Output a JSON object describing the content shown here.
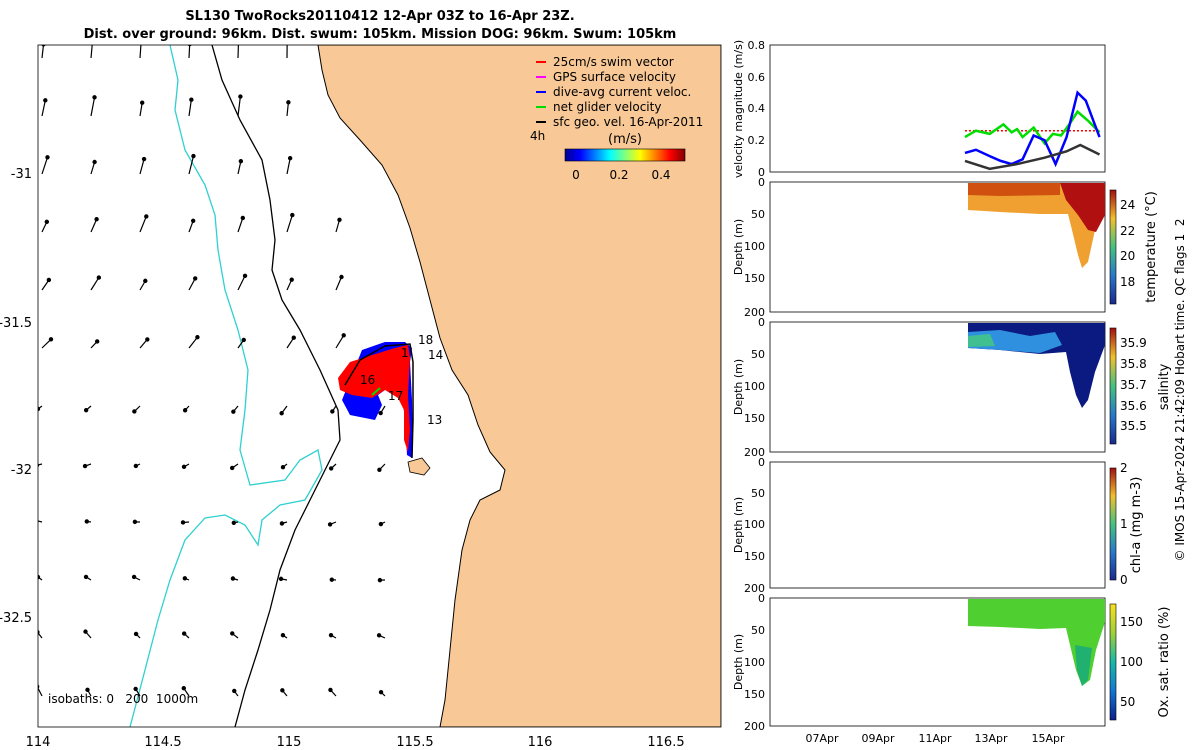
{
  "header": {
    "title_line1": "SL130 TwoRocks20110412 12-Apr 03Z to 16-Apr 23Z.",
    "title_line2": "Dist. over ground: 96km. Dist. swum: 105km. Mission DOG: 96km. Swum: 105km"
  },
  "colors": {
    "ocean_bg": "#ffffff",
    "land": "#f8c896",
    "isobath_shallow": "#30d0d0",
    "isobath_deep": "#000000",
    "swim_vector": "#ff0000",
    "gps_surface": "#ff00ff",
    "dive_avg": "#0000ff",
    "net_glider": "#00dd00",
    "sfc_geo": "#000000"
  },
  "map": {
    "legend": [
      {
        "label": "25cm/s swim vector",
        "color": "#ff0000"
      },
      {
        "label": "GPS surface velocity",
        "color": "#ff00ff"
      },
      {
        "label": "dive-avg current veloc.",
        "color": "#0000ff"
      },
      {
        "label": "net glider velocity",
        "color": "#00dd00"
      },
      {
        "label": "sfc geo. vel. 16-Apr-2011",
        "color": "#000000"
      }
    ],
    "interval_label": "4h",
    "colorbar_title": "(m/s)",
    "colorbar_ticks": [
      "0",
      "0.2",
      "0.4"
    ],
    "isobath_label": "isobaths: 0   200  1000m",
    "x_ticks": [
      "114",
      "114.5",
      "115",
      "115.5",
      "116",
      "116.5"
    ],
    "y_ticks": [
      "-31",
      "-31.5",
      "-32",
      "-32.5"
    ],
    "day_labels": [
      "18",
      "14",
      "16",
      "17",
      "13",
      "1"
    ]
  },
  "chart_data": [
    {
      "type": "line",
      "ylabel": "velocity magnitude (m/s)",
      "ylim": [
        0,
        0.8
      ],
      "y_ticks": [
        "0",
        "0.2",
        "0.4",
        "0.6",
        "0.8"
      ],
      "x_ticks": [
        "07Apr",
        "09Apr",
        "11Apr",
        "13Apr",
        "15Apr"
      ],
      "series": [
        {
          "color": "#ff0000",
          "x": [
            12.1,
            17.0
          ],
          "y": [
            0.26,
            0.26
          ]
        },
        {
          "color": "#00dd00",
          "x": [
            12.1,
            12.5,
            13.0,
            13.5,
            13.8,
            14.0,
            14.2,
            14.6,
            15.0,
            15.3,
            15.6,
            15.9,
            16.2,
            16.6,
            17.0
          ],
          "y": [
            0.22,
            0.26,
            0.24,
            0.3,
            0.25,
            0.27,
            0.22,
            0.28,
            0.18,
            0.24,
            0.23,
            0.3,
            0.38,
            0.32,
            0.25
          ]
        },
        {
          "color": "#0000ff",
          "x": [
            12.1,
            12.5,
            13.0,
            13.4,
            13.8,
            14.2,
            14.6,
            15.0,
            15.4,
            15.8,
            16.2,
            16.5,
            17.0
          ],
          "y": [
            0.12,
            0.14,
            0.1,
            0.07,
            0.05,
            0.08,
            0.23,
            0.2,
            0.05,
            0.22,
            0.5,
            0.45,
            0.22
          ]
        },
        {
          "color": "#333333",
          "x": [
            12.1,
            13.0,
            14.0,
            15.0,
            15.8,
            16.3,
            17.0
          ],
          "y": [
            0.07,
            0.02,
            0.05,
            0.09,
            0.13,
            0.17,
            0.11
          ]
        }
      ]
    },
    {
      "type": "heatmap",
      "ylabel": "Depth (m)",
      "colorbar_label": "temperature (°C)",
      "colorbar_ticks": [
        "18",
        "20",
        "22",
        "24"
      ],
      "y_ticks": [
        "0",
        "50",
        "100",
        "150",
        "200"
      ],
      "x_ticks": [
        "07Apr",
        "09Apr",
        "11Apr",
        "13Apr",
        "15Apr"
      ]
    },
    {
      "type": "heatmap",
      "ylabel": "Depth (m)",
      "colorbar_label": "salinity",
      "colorbar_ticks": [
        "35.5",
        "35.6",
        "35.7",
        "35.8",
        "35.9"
      ],
      "y_ticks": [
        "0",
        "50",
        "100",
        "150",
        "200"
      ],
      "x_ticks": [
        "07Apr",
        "09Apr",
        "11Apr",
        "13Apr",
        "15Apr"
      ]
    },
    {
      "type": "heatmap",
      "ylabel": "Depth (m)",
      "colorbar_label": "chl-a (mg m-3)",
      "colorbar_ticks": [
        "0",
        "1",
        "2"
      ],
      "y_ticks": [
        "0",
        "50",
        "100",
        "150",
        "200"
      ],
      "x_ticks": [
        "07Apr",
        "09Apr",
        "11Apr",
        "13Apr",
        "15Apr"
      ]
    },
    {
      "type": "heatmap",
      "ylabel": "Depth (m)",
      "colorbar_label": "Ox. sat. ratio (%)",
      "colorbar_ticks": [
        "50",
        "100",
        "150"
      ],
      "y_ticks": [
        "0",
        "50",
        "100",
        "150",
        "200"
      ],
      "x_ticks": [
        "07Apr",
        "09Apr",
        "11Apr",
        "13Apr",
        "15Apr"
      ]
    }
  ],
  "footer": {
    "credit": "© IMOS 15-Apr-2024 21:42:09 Hobart time. QC flags 1  2"
  }
}
